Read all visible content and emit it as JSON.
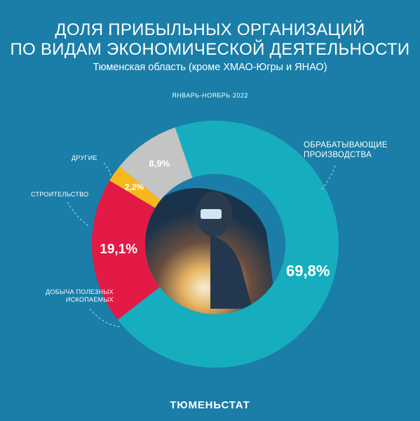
{
  "header": {
    "title_line1": "ДОЛЯ ПРИБЫЛЬНЫХ ОРГАНИЗАЦИЙ",
    "title_line2": "ПО ВИДАМ ЭКОНОМИЧЕСКОЙ ДЕЯТЕЛЬНОСТИ",
    "subtitle": "Тюменская область (кроме ХМАО-Югры и ЯНАО)",
    "period": "ЯНВАРЬ-НОЯБРЬ 2022"
  },
  "chart_data": {
    "type": "pie",
    "donut": true,
    "slices": [
      {
        "label_lines": [
          "ОБРАБАТЫВАЮЩИЕ",
          "ПРОИЗВОДСТВА"
        ],
        "value": 69.8,
        "display": "69,8%",
        "color": "#16aebe"
      },
      {
        "label_lines": [
          "ДОБЫЧА ПОЛЕЗНЫХ",
          "ИСКОПАЕМЫХ"
        ],
        "value": 19.1,
        "display": "19,1%",
        "color": "#e21a45"
      },
      {
        "label_lines": [
          "СТРОИТЕЛЬСТВО"
        ],
        "value": 2.2,
        "display": "2,2%",
        "color": "#f7b81b"
      },
      {
        "label_lines": [
          "ДРУГИЕ"
        ],
        "value": 8.9,
        "display": "8,9%",
        "color": "#c4c4c4"
      }
    ]
  },
  "colors": {
    "background": "#1a7ea8",
    "hole": "#1a7ea8",
    "leader_line": "#8fd3e6"
  },
  "center_image": "welder-with-sparks-photo",
  "footer": {
    "brand": "ТЮМЕНЬСТАТ"
  }
}
